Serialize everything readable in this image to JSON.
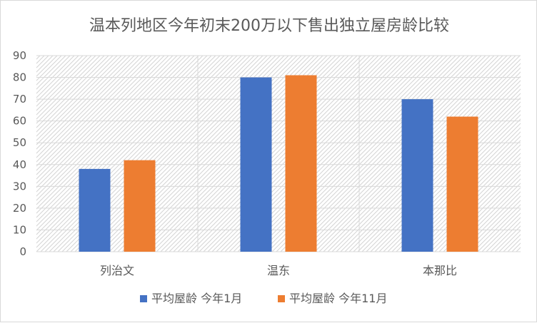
{
  "chart_data": {
    "type": "bar",
    "title": "温本列地区今年初末200万以下售出独立屋房龄比较",
    "categories": [
      "列治文",
      "温东",
      "本那比"
    ],
    "series": [
      {
        "name": "平均屋龄 今年1月",
        "values": [
          38,
          80,
          70
        ],
        "color": "#4472c4"
      },
      {
        "name": "平均屋龄 今年11月",
        "values": [
          42,
          81,
          62
        ],
        "color": "#ed7d31"
      }
    ],
    "ylim": [
      0,
      90
    ],
    "yticks": [
      0,
      10,
      20,
      30,
      40,
      50,
      60,
      70,
      80,
      90
    ],
    "grid": true,
    "legend_position": "bottom"
  }
}
